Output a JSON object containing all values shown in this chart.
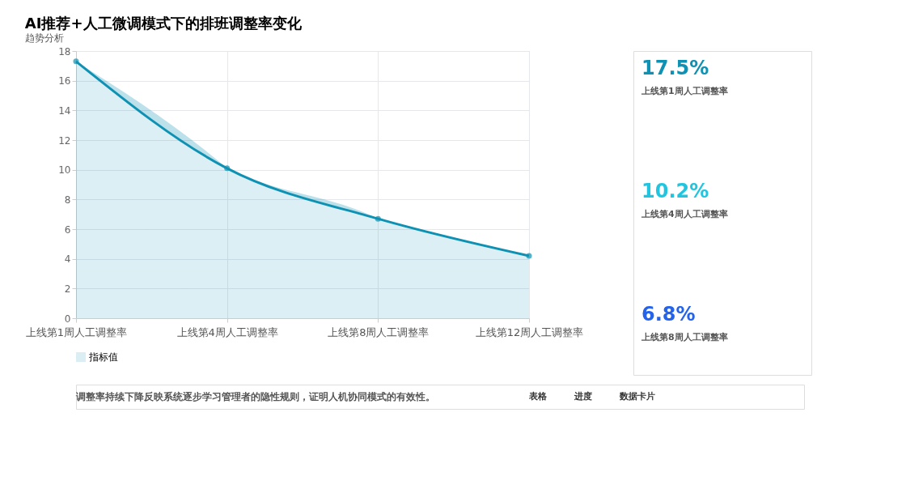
{
  "chart_data": {
    "type": "area",
    "title": "AI推荐+人工微调模式下的排班调整率变化",
    "subtitle": "趋势分析",
    "categories": [
      "上线第1周人工调整率",
      "上线第4周人工调整率",
      "上线第8周人工调整率",
      "上线第12周人工调整率"
    ],
    "series": [
      {
        "name": "指标值",
        "color": "#0e91b2",
        "values": [
          17.3,
          10.1,
          6.7,
          4.2
        ]
      }
    ],
    "ylim": [
      0,
      18
    ],
    "yticks": [
      0,
      2,
      4,
      6,
      8,
      10,
      12,
      14,
      16,
      18
    ],
    "grid": true,
    "legend": "bottom",
    "marker": "circle",
    "annotations": [
      "17.5%",
      "上线第1周人工调整率",
      "10.2%",
      "上线第4周人工调整率",
      "6.8%",
      "上线第8周人工调整率",
      "调整率持续下降反映系统逐步学习管理者的隐性规则，证明人机协同模式的有效性。",
      "表格",
      "进度",
      "数据卡片"
    ]
  }
}
